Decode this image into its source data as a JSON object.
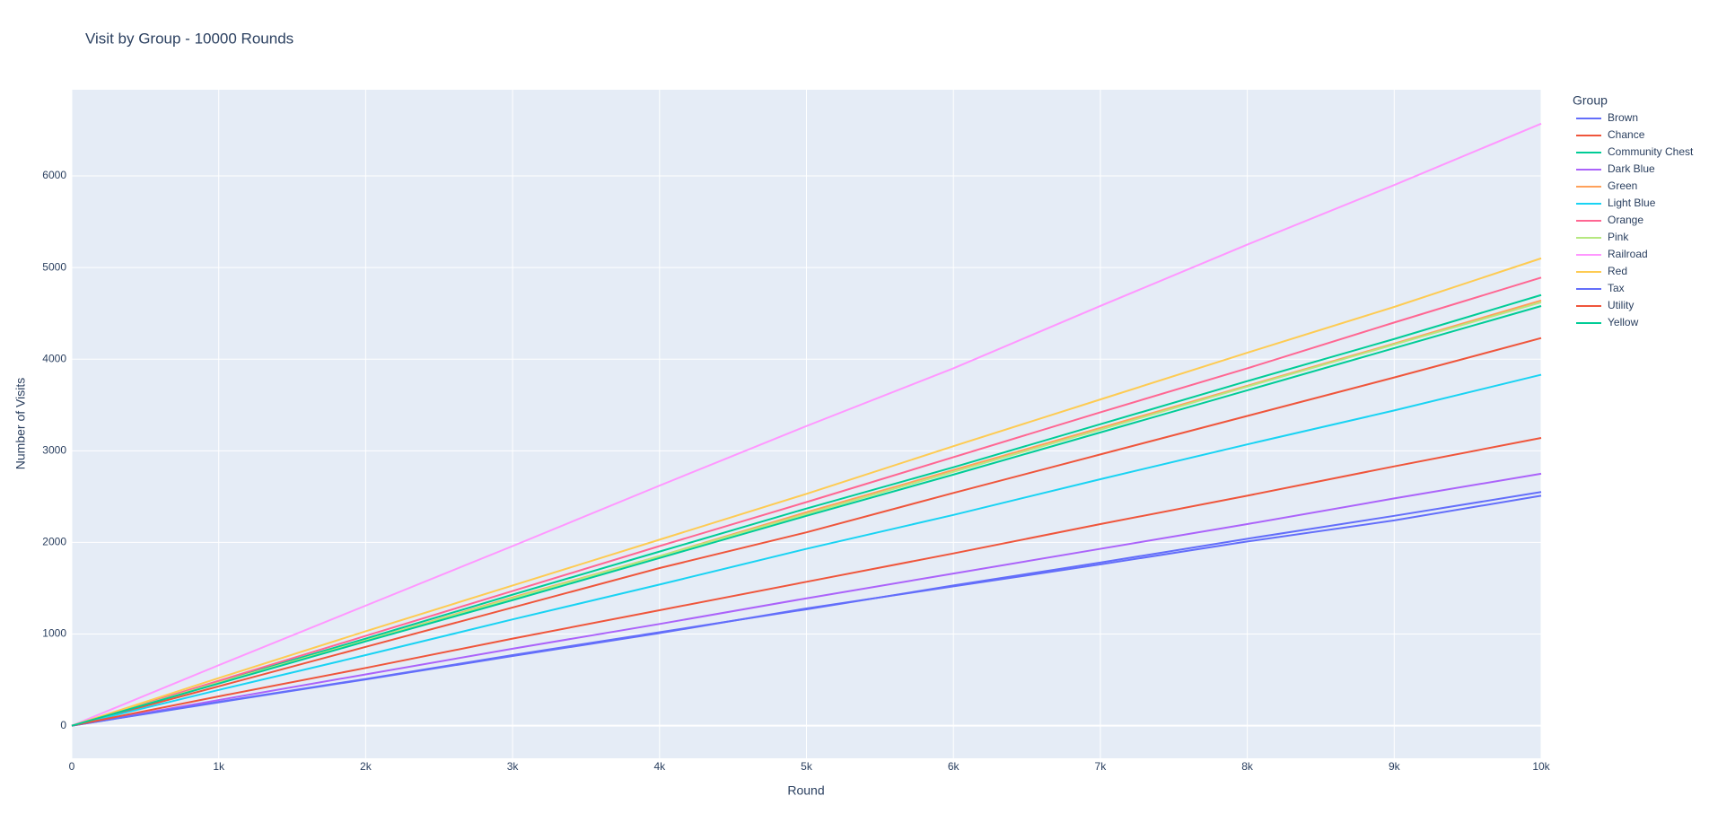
{
  "chart_data": {
    "type": "line",
    "title": "Visit by Group - 10000 Rounds",
    "x_label": "Round",
    "y_label": "Number of Visits",
    "legend_title": "Group",
    "x": [
      0,
      1000,
      2000,
      3000,
      4000,
      5000,
      6000,
      7000,
      8000,
      9000,
      10000
    ],
    "xlim": [
      0,
      10000
    ],
    "xticks": [
      0,
      {
        "value": 1000,
        "label": "1k"
      },
      {
        "value": 2000,
        "label": "2k"
      },
      {
        "value": 3000,
        "label": "3k"
      },
      {
        "value": 4000,
        "label": "4k"
      },
      {
        "value": 5000,
        "label": "5k"
      },
      {
        "value": 6000,
        "label": "6k"
      },
      {
        "value": 7000,
        "label": "7k"
      },
      {
        "value": 8000,
        "label": "8k"
      },
      {
        "value": 9000,
        "label": "9k"
      },
      {
        "value": 10000,
        "label": "10k"
      }
    ],
    "ylim": [
      -356,
      6940
    ],
    "yticks": [
      0,
      1000,
      2000,
      3000,
      4000,
      5000,
      6000
    ],
    "grid": true,
    "legend": "right",
    "series": [
      {
        "name": "Brown",
        "color": "#636efa",
        "values": [
          0,
          255,
          505,
          760,
          1010,
          1280,
          1520,
          1760,
          2010,
          2240,
          2510
        ]
      },
      {
        "name": "Chance",
        "color": "#EF553B",
        "values": [
          0,
          430,
          860,
          1290,
          1720,
          2110,
          2540,
          2960,
          3380,
          3800,
          4230
        ]
      },
      {
        "name": "Community Chest",
        "color": "#00cc96",
        "values": [
          0,
          480,
          950,
          1430,
          1900,
          2370,
          2820,
          3290,
          3760,
          4220,
          4700
        ]
      },
      {
        "name": "Dark Blue",
        "color": "#ab63fa",
        "values": [
          0,
          280,
          560,
          840,
          1110,
          1390,
          1660,
          1930,
          2200,
          2480,
          2750
        ]
      },
      {
        "name": "Green",
        "color": "#FFA15A",
        "values": [
          0,
          470,
          930,
          1400,
          1850,
          2330,
          2790,
          3250,
          3710,
          4170,
          4640
        ]
      },
      {
        "name": "Light Blue",
        "color": "#19d3f3",
        "values": [
          0,
          390,
          770,
          1160,
          1540,
          1930,
          2300,
          2690,
          3070,
          3440,
          3830
        ]
      },
      {
        "name": "Orange",
        "color": "#FF6692",
        "values": [
          0,
          490,
          980,
          1470,
          1960,
          2440,
          2930,
          3420,
          3900,
          4400,
          4890
        ]
      },
      {
        "name": "Pink",
        "color": "#B6E880",
        "values": [
          0,
          470,
          930,
          1390,
          1850,
          2310,
          2770,
          3230,
          3700,
          4160,
          4620
        ]
      },
      {
        "name": "Railroad",
        "color": "#FF97FF",
        "values": [
          0,
          660,
          1310,
          1960,
          2620,
          3270,
          3900,
          4580,
          5250,
          5900,
          6570
        ]
      },
      {
        "name": "Red",
        "color": "#FECB52",
        "values": [
          0,
          520,
          1030,
          1530,
          2030,
          2530,
          3050,
          3560,
          4070,
          4570,
          5100
        ]
      },
      {
        "name": "Tax",
        "color": "#636efa",
        "values": [
          0,
          260,
          510,
          770,
          1020,
          1270,
          1530,
          1780,
          2040,
          2290,
          2550
        ]
      },
      {
        "name": "Utility",
        "color": "#EF553B",
        "values": [
          0,
          320,
          630,
          950,
          1260,
          1570,
          1880,
          2200,
          2510,
          2830,
          3140
        ]
      },
      {
        "name": "Yellow",
        "color": "#00cc96",
        "values": [
          0,
          460,
          920,
          1370,
          1830,
          2290,
          2740,
          3200,
          3660,
          4120,
          4580
        ]
      }
    ]
  }
}
